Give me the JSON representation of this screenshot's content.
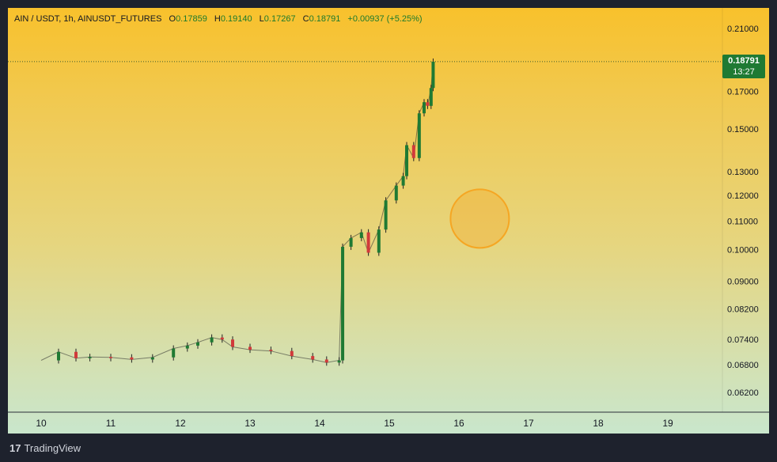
{
  "header": {
    "symbol": "AIN / USDT, 1h, AINUSDT_FUTURES",
    "open_label": "O",
    "open": "0.17859",
    "high_label": "H",
    "high": "0.19140",
    "low_label": "L",
    "low": "0.17267",
    "close_label": "C",
    "close": "0.18791",
    "change": "+0.00937 (+5.25%)"
  },
  "price_tag": {
    "price": "0.18791",
    "countdown": "13:27"
  },
  "footer": {
    "logo_mark": "17",
    "brand": "TradingView"
  },
  "colors": {
    "up": "#1f7a33",
    "down": "#d13a3a",
    "highlight": "#f5a623",
    "background_top": "#f8c12c",
    "background_bottom": "#c9e6cc"
  },
  "chart_data": {
    "type": "candlestick",
    "scale": "log",
    "y_ticks": [
      "0.21000",
      "0.17000",
      "0.15000",
      "0.13000",
      "0.12000",
      "0.11000",
      "0.10000",
      "0.09000",
      "0.08200",
      "0.07400",
      "0.06800",
      "0.06200"
    ],
    "x_ticks": [
      "10",
      "11",
      "12",
      "13",
      "14",
      "15",
      "16",
      "17",
      "18",
      "19"
    ],
    "ylim": [
      0.058,
      0.225
    ],
    "last_price": 0.18791,
    "highlight_circle": {
      "day": 16.3,
      "price": 0.111
    },
    "series": [
      {
        "day": 10.0,
        "price": 0.069
      },
      {
        "day": 10.25,
        "price": 0.071
      },
      {
        "day": 10.5,
        "price": 0.0695
      },
      {
        "day": 10.7,
        "price": 0.0698
      },
      {
        "day": 11.0,
        "price": 0.0697
      },
      {
        "day": 11.3,
        "price": 0.0692
      },
      {
        "day": 11.6,
        "price": 0.0697
      },
      {
        "day": 11.9,
        "price": 0.0718
      },
      {
        "day": 12.1,
        "price": 0.0725
      },
      {
        "day": 12.25,
        "price": 0.0733
      },
      {
        "day": 12.45,
        "price": 0.0745
      },
      {
        "day": 12.6,
        "price": 0.074
      },
      {
        "day": 12.75,
        "price": 0.0722
      },
      {
        "day": 13.0,
        "price": 0.0715
      },
      {
        "day": 13.3,
        "price": 0.0712
      },
      {
        "day": 13.6,
        "price": 0.07
      },
      {
        "day": 13.9,
        "price": 0.0692
      },
      {
        "day": 14.1,
        "price": 0.0685
      },
      {
        "day": 14.28,
        "price": 0.069
      },
      {
        "day": 14.33,
        "price": 0.101
      },
      {
        "day": 14.45,
        "price": 0.104
      },
      {
        "day": 14.6,
        "price": 0.106
      },
      {
        "day": 14.7,
        "price": 0.099
      },
      {
        "day": 14.85,
        "price": 0.107
      },
      {
        "day": 14.95,
        "price": 0.118
      },
      {
        "day": 15.1,
        "price": 0.124
      },
      {
        "day": 15.2,
        "price": 0.128
      },
      {
        "day": 15.25,
        "price": 0.142
      },
      {
        "day": 15.35,
        "price": 0.136
      },
      {
        "day": 15.43,
        "price": 0.158
      },
      {
        "day": 15.5,
        "price": 0.164
      },
      {
        "day": 15.55,
        "price": 0.162
      },
      {
        "day": 15.6,
        "price": 0.172
      },
      {
        "day": 15.63,
        "price": 0.1879
      }
    ]
  }
}
